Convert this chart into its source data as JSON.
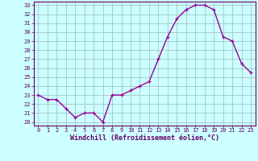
{
  "x": [
    0,
    1,
    2,
    3,
    4,
    5,
    6,
    7,
    8,
    9,
    10,
    11,
    12,
    13,
    14,
    15,
    16,
    17,
    18,
    19,
    20,
    21,
    22,
    23
  ],
  "y": [
    23.0,
    22.5,
    22.5,
    21.5,
    20.5,
    21.0,
    21.0,
    20.0,
    23.0,
    23.0,
    23.5,
    24.0,
    24.5,
    27.0,
    29.5,
    31.5,
    32.5,
    33.0,
    33.0,
    32.5,
    29.5,
    29.0,
    26.5,
    25.5
  ],
  "line_color": "#990099",
  "marker": "+",
  "bg_color": "#ccffff",
  "grid_color": "#aacccc",
  "xlabel": "Windchill (Refroidissement éolien,°C)",
  "ylim": [
    20,
    33
  ],
  "xlim": [
    -0.5,
    23.5
  ],
  "yticks": [
    20,
    21,
    22,
    23,
    24,
    25,
    26,
    27,
    28,
    29,
    30,
    31,
    32,
    33
  ],
  "xticks": [
    0,
    1,
    2,
    3,
    4,
    5,
    6,
    7,
    8,
    9,
    10,
    11,
    12,
    13,
    14,
    15,
    16,
    17,
    18,
    19,
    20,
    21,
    22,
    23
  ],
  "tick_color": "#660066",
  "label_color": "#660066",
  "tick_fontsize": 5,
  "xlabel_fontsize": 6
}
